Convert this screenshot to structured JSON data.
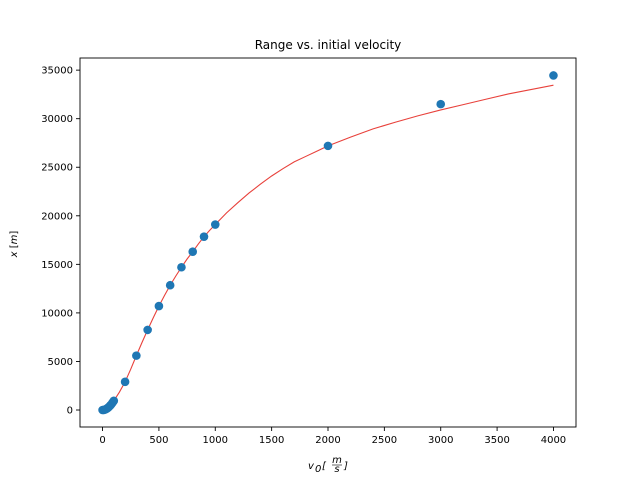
{
  "chart_data": {
    "type": "scatter",
    "title": "Range vs. initial velocity",
    "xlabel": {
      "main": "v",
      "sub": "0",
      "unit_num": "m",
      "unit_den": "s"
    },
    "ylabel": {
      "main": "x",
      "unit": "m"
    },
    "xlim": [
      -200,
      4200
    ],
    "ylim": [
      -1750,
      36250
    ],
    "xticks": [
      0,
      500,
      1000,
      1500,
      2000,
      2500,
      3000,
      3500,
      4000
    ],
    "yticks": [
      0,
      5000,
      10000,
      15000,
      20000,
      25000,
      30000,
      35000
    ],
    "grid": false,
    "legend": "none",
    "colors": {
      "points": "#1f77b4",
      "fit": "#e8413b"
    },
    "series": [
      {
        "kind": "points",
        "x": [
          0,
          10,
          20,
          30,
          40,
          50,
          60,
          70,
          80,
          90,
          100,
          200,
          300,
          400,
          500,
          600,
          700,
          800,
          900,
          1000,
          2000,
          3000,
          4000
        ],
        "y": [
          0,
          10,
          40,
          90,
          160,
          250,
          360,
          480,
          620,
          780,
          950,
          2900,
          5600,
          8250,
          10700,
          12850,
          14700,
          16300,
          17850,
          19100,
          27200,
          31500,
          34450
        ]
      },
      {
        "kind": "fit-line",
        "x": [
          0,
          50,
          100,
          150,
          200,
          250,
          300,
          350,
          400,
          450,
          500,
          550,
          600,
          650,
          700,
          750,
          800,
          850,
          900,
          950,
          1000,
          1100,
          1200,
          1300,
          1400,
          1500,
          1600,
          1700,
          1800,
          1900,
          2000,
          2200,
          2400,
          2600,
          2800,
          3000,
          3200,
          3400,
          3600,
          3800,
          4000
        ],
        "y": [
          0,
          250,
          950,
          1850,
          2900,
          4200,
          5600,
          6950,
          8250,
          9500,
          10700,
          11800,
          12850,
          13800,
          14700,
          15550,
          16300,
          17100,
          17850,
          18500,
          19100,
          20300,
          21350,
          22350,
          23250,
          24100,
          24850,
          25550,
          26100,
          26650,
          27200,
          28100,
          28950,
          29650,
          30300,
          30900,
          31450,
          32000,
          32550,
          33000,
          33450
        ]
      }
    ]
  }
}
